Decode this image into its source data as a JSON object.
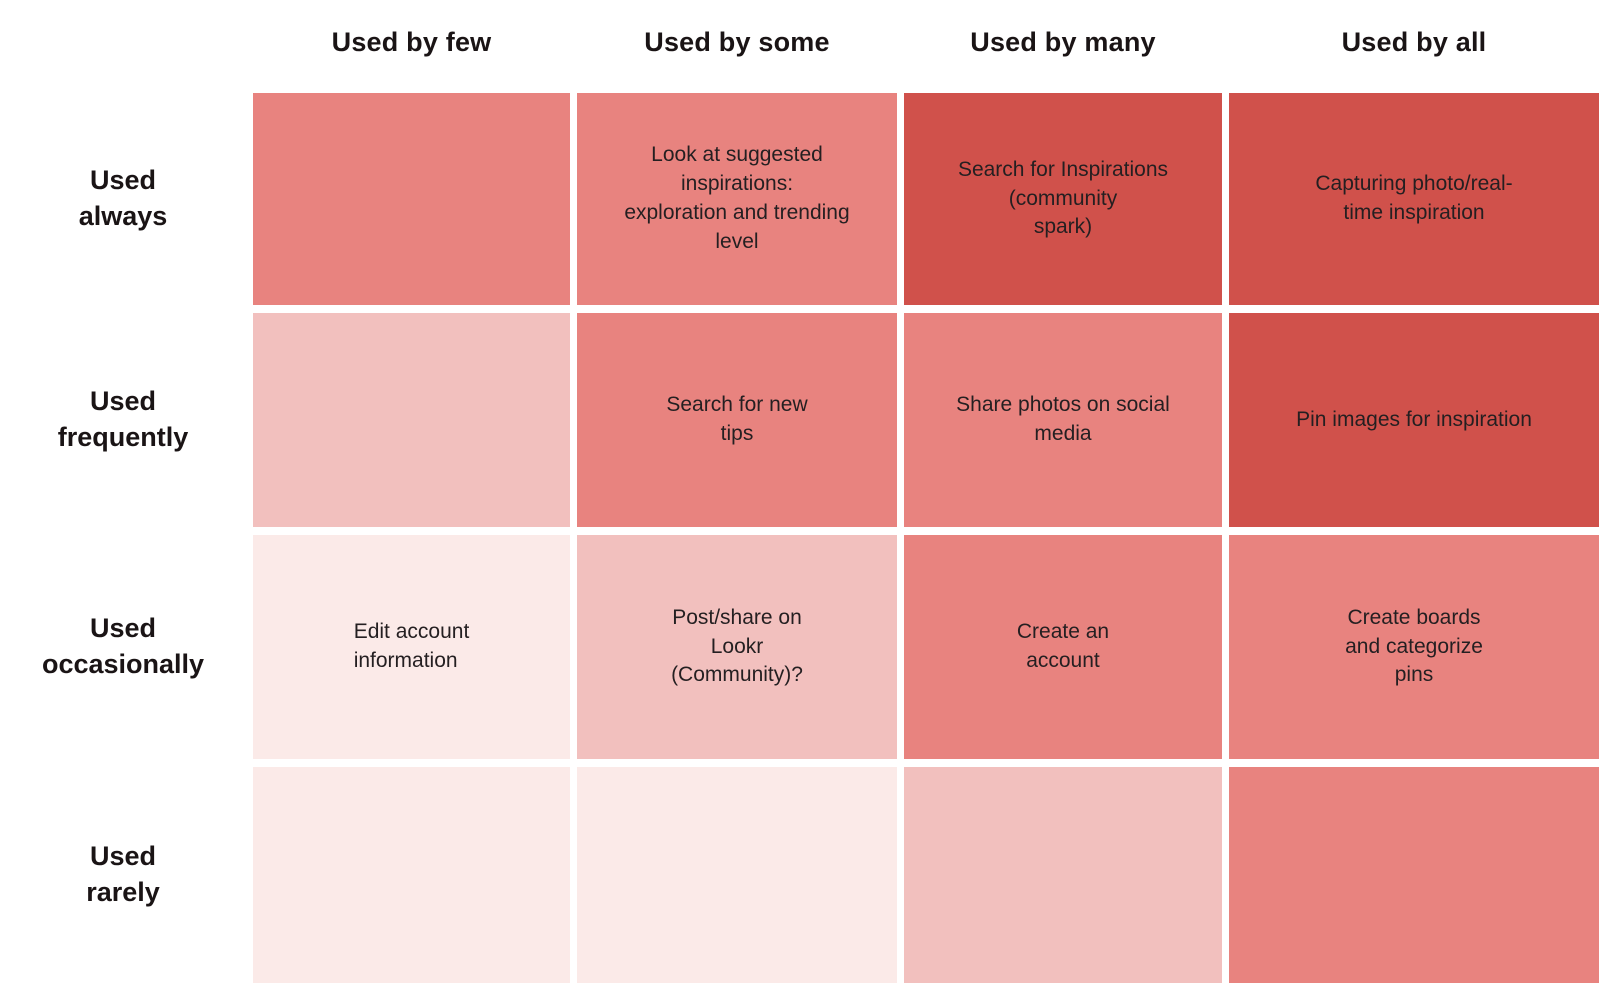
{
  "matrix": {
    "column_headers": [
      "Used by few",
      "Used by some",
      "Used by many",
      "Used by all"
    ],
    "row_headers": [
      "Used\nalways",
      "Used\nfrequently",
      "Used\noccasionally",
      "Used\nrarely"
    ],
    "colors": {
      "level_1": "#FBEAE8",
      "level_2": "#F2C0BE",
      "level_3": "#E8837F",
      "level_4": "#D0514B",
      "header_text": "#1A1415",
      "cell_text": "#241F21",
      "background": "#FFFFFF"
    },
    "rows": [
      {
        "label": "Used always",
        "cells": [
          {
            "text": "",
            "level": 3
          },
          {
            "text": "Look at suggested\ninspirations:\nexploration and trending\nlevel",
            "level": 3
          },
          {
            "text": "Search for Inspirations\n(community\nspark)",
            "level": 4
          },
          {
            "text": "Capturing photo/real-\ntime inspiration",
            "level": 4
          }
        ]
      },
      {
        "label": "Used frequently",
        "cells": [
          {
            "text": "",
            "level": 2
          },
          {
            "text": "Search for new\ntips",
            "level": 3
          },
          {
            "text": "Share photos on social\nmedia",
            "level": 3
          },
          {
            "text": "Pin images for inspiration",
            "level": 4
          }
        ]
      },
      {
        "label": "Used occasionally",
        "cells": [
          {
            "text": "Edit account\ninformation",
            "level": 1
          },
          {
            "text": "Post/share on\nLookr\n(Community)?",
            "level": 2
          },
          {
            "text": "Create an\naccount",
            "level": 3
          },
          {
            "text": "Create boards\nand categorize\npins",
            "level": 3
          }
        ]
      },
      {
        "label": "Used rarely",
        "cells": [
          {
            "text": "",
            "level": 1
          },
          {
            "text": "",
            "level": 1
          },
          {
            "text": "",
            "level": 2
          },
          {
            "text": "",
            "level": 3
          }
        ]
      }
    ]
  }
}
